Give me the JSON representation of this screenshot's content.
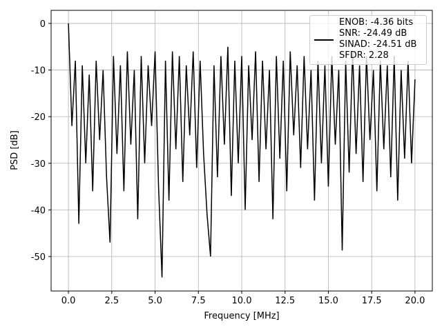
{
  "chart_data": {
    "type": "line",
    "xlabel": "Frequency [MHz]",
    "ylabel": "PSD [dB]",
    "xlim": [
      -1,
      21
    ],
    "ylim": [
      -57.4,
      2.8
    ],
    "xticks": [
      {
        "value": 0,
        "label": "0.0"
      },
      {
        "value": 2.5,
        "label": "2.5"
      },
      {
        "value": 5,
        "label": "5.0"
      },
      {
        "value": 7.5,
        "label": "7.5"
      },
      {
        "value": 10,
        "label": "10.0"
      },
      {
        "value": 12.5,
        "label": "12.5"
      },
      {
        "value": 15,
        "label": "15.0"
      },
      {
        "value": 17.5,
        "label": "17.5"
      },
      {
        "value": 20,
        "label": "20.0"
      }
    ],
    "yticks": [
      -50,
      -40,
      -30,
      -20,
      -10,
      0
    ],
    "grid": true,
    "legend": "upper right",
    "x": [
      0,
      0.2,
      0.4,
      0.6,
      0.8,
      1,
      1.2,
      1.4,
      1.6,
      1.8,
      2,
      2.2,
      2.4,
      2.6,
      2.8,
      3,
      3.2,
      3.4,
      3.6,
      3.8,
      4,
      4.2,
      4.4,
      4.6,
      4.8,
      5,
      5.2,
      5.4,
      5.6,
      5.8,
      6,
      6.2,
      6.4,
      6.6,
      6.8,
      7,
      7.2,
      7.4,
      7.6,
      7.8,
      8,
      8.2,
      8.4,
      8.6,
      8.8,
      9,
      9.2,
      9.4,
      9.6,
      9.8,
      10,
      10.2,
      10.4,
      10.6,
      10.8,
      11,
      11.2,
      11.4,
      11.6,
      11.8,
      12,
      12.2,
      12.4,
      12.6,
      12.8,
      13,
      13.2,
      13.4,
      13.6,
      13.8,
      14,
      14.2,
      14.4,
      14.6,
      14.8,
      15,
      15.2,
      15.4,
      15.6,
      15.8,
      16,
      16.2,
      16.4,
      16.6,
      16.8,
      17,
      17.2,
      17.4,
      17.6,
      17.8,
      18,
      18.2,
      18.4,
      18.6,
      18.8,
      19,
      19.2,
      19.4,
      19.6,
      19.8,
      20
    ],
    "series": [
      {
        "name": "ENOB: -4.36 bits\nSNR: -24.49 dB\nSINAD: -24.51 dB\nSFDR: 2.28",
        "color": "#000000",
        "values": [
          0,
          -22,
          -8,
          -43,
          -9,
          -30,
          -11,
          -36,
          -8,
          -25,
          -10,
          -33,
          -47,
          -7,
          -28,
          -9,
          -36,
          -6,
          -26,
          -10,
          -42,
          -7,
          -30,
          -9,
          -22,
          -6,
          -35,
          -54.5,
          -8,
          -38,
          -6,
          -27,
          -7,
          -34,
          -9,
          -24,
          -6,
          -31,
          -8,
          -28,
          -41,
          -50,
          -9,
          -33,
          -7,
          -26,
          -5,
          -37,
          -8,
          -30,
          -7,
          -40,
          -9,
          -25,
          -6,
          -34,
          -8,
          -27,
          -10,
          -42,
          -7,
          -29,
          -8,
          -36,
          -6,
          -24,
          -9,
          -31,
          -7,
          -27,
          -10,
          -38,
          -8,
          -30,
          -9,
          -35,
          -7,
          -26,
          -10,
          -48.7,
          -8,
          -32,
          -6,
          -28,
          -9,
          -34,
          -7,
          -25,
          -10,
          -36,
          -8,
          -27,
          -9,
          -33,
          -7,
          -38,
          -10,
          -29,
          -8,
          -30,
          -12
        ]
      }
    ]
  }
}
